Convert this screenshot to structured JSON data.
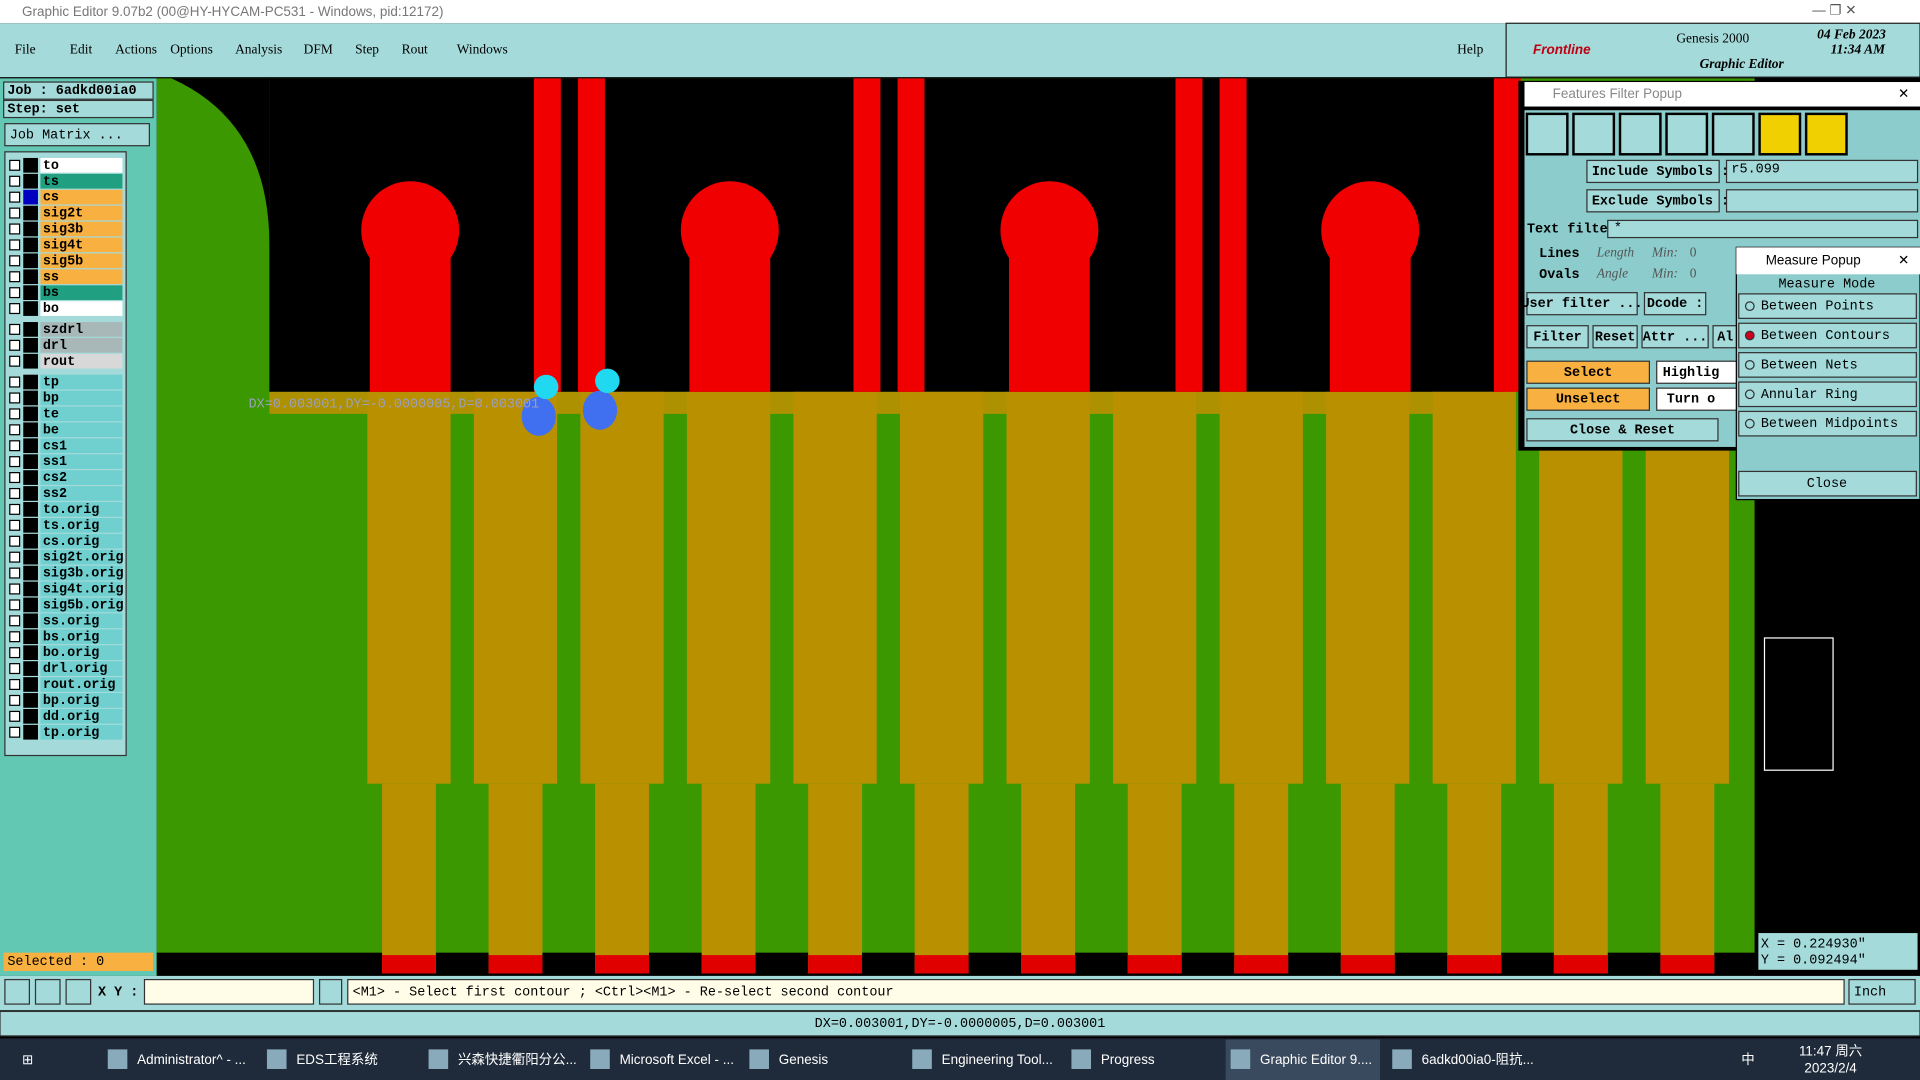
{
  "window": {
    "title": "Graphic Editor 9.07b2 (00@HY-HYCAM-PC531 - Windows, pid:12172)"
  },
  "menu": {
    "items": [
      "File",
      "Edit",
      "Actions",
      "Options",
      "Analysis",
      "DFM",
      "Step",
      "Rout",
      "Windows"
    ],
    "help": "Help"
  },
  "brand": {
    "logo": "Frontline",
    "product": "Genesis 2000",
    "subtitle": "Graphic Editor",
    "date": "04 Feb 2023",
    "time": "11:34 AM"
  },
  "job": {
    "job": "Job : 6adkd00ia0",
    "step": "Step: set",
    "matrix": "Job Matrix ..."
  },
  "layers": [
    [
      {
        "name": "to",
        "color": "#ffffff"
      },
      {
        "name": "ts",
        "color": "#20a080"
      },
      {
        "name": "cs",
        "color": "#f8b040"
      },
      {
        "name": "sig2t",
        "color": "#f8b040"
      },
      {
        "name": "sig3b",
        "color": "#f8b040"
      },
      {
        "name": "sig4t",
        "color": "#f8b040"
      },
      {
        "name": "sig5b",
        "color": "#f8b040"
      },
      {
        "name": "ss",
        "color": "#f8b040"
      },
      {
        "name": "bs",
        "color": "#20a080"
      },
      {
        "name": "bo",
        "color": "#ffffff"
      }
    ],
    [
      {
        "name": "szdrl",
        "color": "#a8b8b8"
      },
      {
        "name": "drl",
        "color": "#a8b8b8"
      },
      {
        "name": "rout",
        "color": "#d8d8d8"
      }
    ],
    [
      {
        "name": "tp",
        "color": "#70d0d0"
      },
      {
        "name": "bp",
        "color": "#70d0d0"
      },
      {
        "name": "te",
        "color": "#70d0d0"
      },
      {
        "name": "be",
        "color": "#70d0d0"
      },
      {
        "name": "cs1",
        "color": "#70d0d0"
      },
      {
        "name": "ss1",
        "color": "#70d0d0"
      },
      {
        "name": "cs2",
        "color": "#70d0d0"
      },
      {
        "name": "ss2",
        "color": "#70d0d0"
      },
      {
        "name": "to.orig",
        "color": "#70d0d0"
      },
      {
        "name": "ts.orig",
        "color": "#70d0d0"
      },
      {
        "name": "cs.orig",
        "color": "#70d0d0"
      },
      {
        "name": "sig2t.orig",
        "color": "#70d0d0"
      },
      {
        "name": "sig3b.orig",
        "color": "#70d0d0"
      },
      {
        "name": "sig4t.orig",
        "color": "#70d0d0"
      },
      {
        "name": "sig5b.orig",
        "color": "#70d0d0"
      },
      {
        "name": "ss.orig",
        "color": "#70d0d0"
      },
      {
        "name": "bs.orig",
        "color": "#70d0d0"
      },
      {
        "name": "bo.orig",
        "color": "#70d0d0"
      },
      {
        "name": "drl.orig",
        "color": "#70d0d0"
      },
      {
        "name": "rout.orig",
        "color": "#70d0d0"
      },
      {
        "name": "bp.orig",
        "color": "#70d0d0"
      },
      {
        "name": "dd.orig",
        "color": "#70d0d0"
      },
      {
        "name": "tp.orig",
        "color": "#70d0d0"
      }
    ]
  ],
  "selected": "Selected : 0",
  "canvas": {
    "measure_label": "DX=0.003001,DY=-0.0000005,D=0.003001"
  },
  "filter_popup": {
    "title": "Features Filter Popup",
    "include": "Include Symbols :",
    "include_value": "r5.099",
    "exclude": "Exclude Symbols :",
    "text_filter": "Text filter",
    "text_value": "*",
    "lines": "Lines",
    "ovals": "Ovals",
    "length": "Length",
    "angle": "Angle",
    "min1": "Min:",
    "min2": "Min:",
    "min1_value": "0",
    "min2_value": "0",
    "user_filter": "User filter ...",
    "dcode": "Dcode :",
    "filter": "Filter",
    "reset": "Reset",
    "attr": "Attr ...",
    "al": "Al",
    "select": "Select",
    "highlight": "Highlig",
    "unselect": "Unselect",
    "turn": "Turn o",
    "close_reset": "Close & Reset"
  },
  "measure_popup": {
    "title": "Measure Popup",
    "mode": "Measure Mode",
    "options": [
      "Between Points",
      "Between Contours",
      "Between Nets",
      "Annular Ring",
      "Between Midpoints"
    ],
    "close": "Close"
  },
  "coords": {
    "x": "X = 0.224930\"",
    "y": "Y = 0.092494\""
  },
  "command": {
    "xy": "X Y :",
    "message": "<M1> - Select first contour ; <Ctrl><M1> - Re-select second contour",
    "units": "Inch"
  },
  "status_bar": {
    "text": "DX=0.003001,DY=-0.0000005,D=0.003001"
  },
  "taskbar": {
    "apps": [
      "Administrator^ - ...",
      "EDS工程系统",
      "兴森快捷衢阳分公...",
      "Microsoft Excel - ...",
      "Genesis",
      "Engineering Tool...",
      "Progress",
      "Graphic Editor 9....",
      "6adkd00ia0-阻抗..."
    ],
    "ime": "中",
    "time": "11:47 周六",
    "date": "2023/2/4"
  }
}
